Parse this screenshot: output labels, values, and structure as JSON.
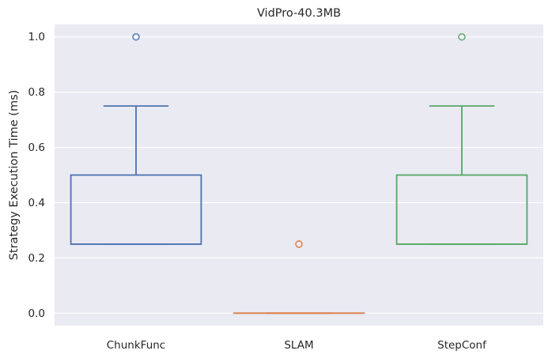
{
  "chart_data": {
    "type": "box",
    "title": "VidPro-40.3MB",
    "xlabel": "",
    "ylabel": "Strategy Execution Time (ms)",
    "ylim": [
      -0.045,
      1.045
    ],
    "yticks": [
      0.0,
      0.2,
      0.4,
      0.6,
      0.8,
      1.0
    ],
    "ytick_labels": [
      "0.0",
      "0.2",
      "0.4",
      "0.6",
      "0.8",
      "1.0"
    ],
    "grid": true,
    "categories": [
      "ChunkFunc",
      "SLAM",
      "StepConf"
    ],
    "boxes": [
      {
        "category": "ChunkFunc",
        "whisker_low": 0.25,
        "q1": 0.25,
        "median": 0.25,
        "q3": 0.5,
        "whisker_high": 0.75,
        "outliers": [
          1.0
        ],
        "color": "#4C72B0"
      },
      {
        "category": "SLAM",
        "whisker_low": 0.0,
        "q1": 0.0,
        "median": 0.0,
        "q3": 0.0,
        "whisker_high": 0.0,
        "outliers": [
          0.25,
          0.25
        ],
        "color": "#DD8452"
      },
      {
        "category": "StepConf",
        "whisker_low": 0.25,
        "q1": 0.25,
        "median": 0.25,
        "q3": 0.5,
        "whisker_high": 0.75,
        "outliers": [
          1.0
        ],
        "color": "#55A868"
      }
    ],
    "colors": {
      "plot_background": "#EAEAF2",
      "grid": "#FFFFFF",
      "text": "#262626"
    }
  }
}
